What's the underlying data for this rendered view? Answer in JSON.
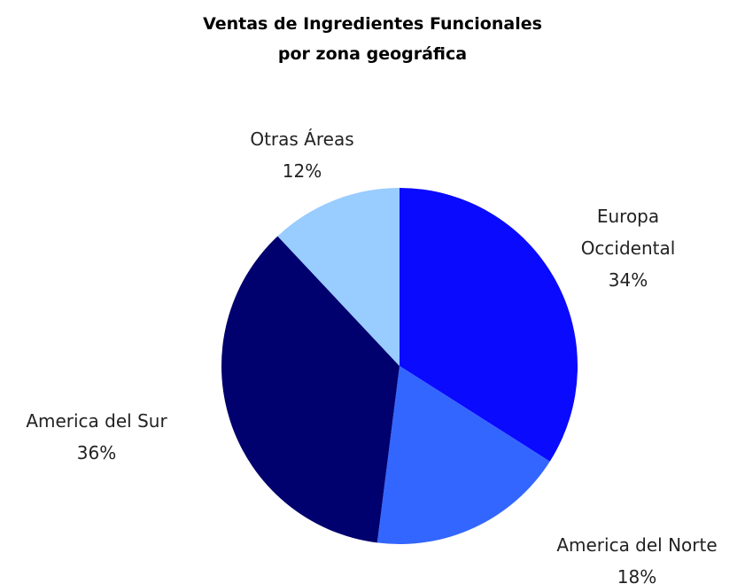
{
  "chart_data": {
    "type": "pie",
    "title": [
      "Ventas de Ingredientes Funcionales",
      "por zona geográfica"
    ],
    "categories": [
      "Europa Occidental",
      "America del Norte",
      "America del Sur",
      "Otras Áreas"
    ],
    "values": [
      34,
      18,
      36,
      12
    ],
    "value_labels": [
      "34%",
      "18%",
      "36%",
      "12%"
    ],
    "colors": [
      "#0a0aff",
      "#3366ff",
      "#00006e",
      "#99ccff"
    ]
  }
}
